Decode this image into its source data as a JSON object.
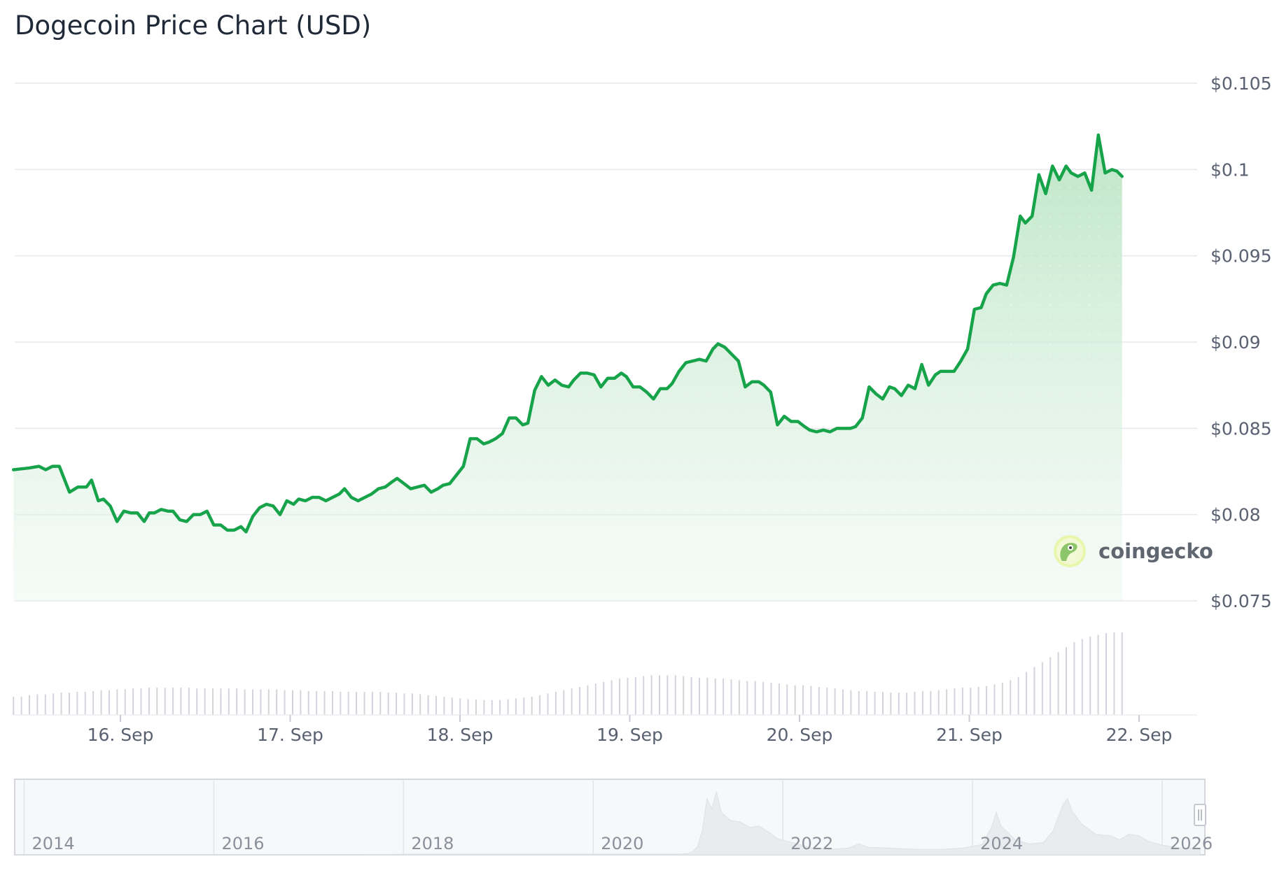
{
  "chart_data": {
    "type": "area",
    "title": "Dogecoin Price Chart (USD)",
    "xlabel": "",
    "ylabel": "",
    "currency": "USD",
    "x_range": [
      "15. Sep",
      "22. Sep"
    ],
    "ylim": [
      0.075,
      0.105
    ],
    "y_ticks": [
      {
        "value": 0.105,
        "label": "$0.105"
      },
      {
        "value": 0.1,
        "label": "$0.1"
      },
      {
        "value": 0.095,
        "label": "$0.095"
      },
      {
        "value": 0.09,
        "label": "$0.09"
      },
      {
        "value": 0.085,
        "label": "$0.085"
      },
      {
        "value": 0.08,
        "label": "$0.08"
      },
      {
        "value": 0.075,
        "label": "$0.075"
      }
    ],
    "x_ticks": [
      {
        "day": 1,
        "label": "16. Sep"
      },
      {
        "day": 2,
        "label": "17. Sep"
      },
      {
        "day": 3,
        "label": "18. Sep"
      },
      {
        "day": 4,
        "label": "19. Sep"
      },
      {
        "day": 5,
        "label": "20. Sep"
      },
      {
        "day": 6,
        "label": "21. Sep"
      },
      {
        "day": 7,
        "label": "22. Sep"
      }
    ],
    "grid": true,
    "legend": "none",
    "series": [
      {
        "values": [
          [
            0.37,
            0.0826
          ],
          [
            0.46,
            0.0827
          ],
          [
            0.52,
            0.0828
          ],
          [
            0.56,
            0.0826
          ],
          [
            0.6,
            0.0828
          ],
          [
            0.64,
            0.0828
          ],
          [
            0.7,
            0.0813
          ],
          [
            0.75,
            0.0816
          ],
          [
            0.8,
            0.0816
          ],
          [
            0.83,
            0.082
          ],
          [
            0.87,
            0.0808
          ],
          [
            0.9,
            0.0809
          ],
          [
            0.94,
            0.0805
          ],
          [
            0.98,
            0.0796
          ],
          [
            1.02,
            0.0802
          ],
          [
            1.06,
            0.0801
          ],
          [
            1.1,
            0.0801
          ],
          [
            1.14,
            0.0796
          ],
          [
            1.17,
            0.0801
          ],
          [
            1.2,
            0.0801
          ],
          [
            1.24,
            0.0803
          ],
          [
            1.28,
            0.0802
          ],
          [
            1.31,
            0.0802
          ],
          [
            1.35,
            0.0797
          ],
          [
            1.39,
            0.0796
          ],
          [
            1.43,
            0.08
          ],
          [
            1.47,
            0.08
          ],
          [
            1.51,
            0.0802
          ],
          [
            1.55,
            0.0794
          ],
          [
            1.59,
            0.0794
          ],
          [
            1.63,
            0.0791
          ],
          [
            1.67,
            0.0791
          ],
          [
            1.71,
            0.0793
          ],
          [
            1.74,
            0.079
          ],
          [
            1.78,
            0.0799
          ],
          [
            1.82,
            0.0804
          ],
          [
            1.86,
            0.0806
          ],
          [
            1.9,
            0.0805
          ],
          [
            1.94,
            0.08
          ],
          [
            1.98,
            0.0808
          ],
          [
            2.02,
            0.0806
          ],
          [
            2.05,
            0.0809
          ],
          [
            2.09,
            0.0808
          ],
          [
            2.13,
            0.081
          ],
          [
            2.17,
            0.081
          ],
          [
            2.21,
            0.0808
          ],
          [
            2.25,
            0.081
          ],
          [
            2.29,
            0.0812
          ],
          [
            2.32,
            0.0815
          ],
          [
            2.36,
            0.081
          ],
          [
            2.4,
            0.0808
          ],
          [
            2.44,
            0.081
          ],
          [
            2.48,
            0.0812
          ],
          [
            2.52,
            0.0815
          ],
          [
            2.56,
            0.0816
          ],
          [
            2.6,
            0.0819
          ],
          [
            2.63,
            0.0821
          ],
          [
            2.67,
            0.0818
          ],
          [
            2.71,
            0.0815
          ],
          [
            2.75,
            0.0816
          ],
          [
            2.79,
            0.0817
          ],
          [
            2.83,
            0.0813
          ],
          [
            2.87,
            0.0815
          ],
          [
            2.9,
            0.0817
          ],
          [
            2.94,
            0.0818
          ],
          [
            2.98,
            0.0823
          ],
          [
            3.02,
            0.0828
          ],
          [
            3.06,
            0.0844
          ],
          [
            3.1,
            0.0844
          ],
          [
            3.14,
            0.0841
          ],
          [
            3.17,
            0.0842
          ],
          [
            3.21,
            0.0844
          ],
          [
            3.25,
            0.0847
          ],
          [
            3.29,
            0.0856
          ],
          [
            3.33,
            0.0856
          ],
          [
            3.37,
            0.0852
          ],
          [
            3.4,
            0.0853
          ],
          [
            3.44,
            0.0872
          ],
          [
            3.48,
            0.088
          ],
          [
            3.52,
            0.0875
          ],
          [
            3.56,
            0.0878
          ],
          [
            3.6,
            0.0875
          ],
          [
            3.64,
            0.0874
          ],
          [
            3.67,
            0.0878
          ],
          [
            3.71,
            0.0882
          ],
          [
            3.75,
            0.0882
          ],
          [
            3.79,
            0.0881
          ],
          [
            3.83,
            0.0874
          ],
          [
            3.87,
            0.0879
          ],
          [
            3.91,
            0.0879
          ],
          [
            3.95,
            0.0882
          ],
          [
            3.98,
            0.088
          ],
          [
            4.02,
            0.0874
          ],
          [
            4.06,
            0.0874
          ],
          [
            4.1,
            0.0871
          ],
          [
            4.14,
            0.0867
          ],
          [
            4.18,
            0.0873
          ],
          [
            4.22,
            0.0873
          ],
          [
            4.25,
            0.0876
          ],
          [
            4.29,
            0.0883
          ],
          [
            4.33,
            0.0888
          ],
          [
            4.37,
            0.0889
          ],
          [
            4.41,
            0.089
          ],
          [
            4.45,
            0.0889
          ],
          [
            4.49,
            0.0896
          ],
          [
            4.52,
            0.0899
          ],
          [
            4.56,
            0.0897
          ],
          [
            4.6,
            0.0893
          ],
          [
            4.64,
            0.0889
          ],
          [
            4.68,
            0.0874
          ],
          [
            4.72,
            0.0877
          ],
          [
            4.76,
            0.0877
          ],
          [
            4.79,
            0.0875
          ],
          [
            4.83,
            0.0871
          ],
          [
            4.87,
            0.0852
          ],
          [
            4.91,
            0.0857
          ],
          [
            4.95,
            0.0854
          ],
          [
            4.99,
            0.0854
          ],
          [
            5.03,
            0.0851
          ],
          [
            5.06,
            0.0849
          ],
          [
            5.1,
            0.0848
          ],
          [
            5.14,
            0.0849
          ],
          [
            5.18,
            0.0848
          ],
          [
            5.22,
            0.085
          ],
          [
            5.26,
            0.085
          ],
          [
            5.3,
            0.085
          ],
          [
            5.33,
            0.0851
          ],
          [
            5.37,
            0.0856
          ],
          [
            5.41,
            0.0874
          ],
          [
            5.45,
            0.087
          ],
          [
            5.49,
            0.0867
          ],
          [
            5.53,
            0.0874
          ],
          [
            5.56,
            0.0873
          ],
          [
            5.6,
            0.0869
          ],
          [
            5.64,
            0.0875
          ],
          [
            5.68,
            0.0873
          ],
          [
            5.72,
            0.0887
          ],
          [
            5.76,
            0.0875
          ],
          [
            5.8,
            0.0881
          ],
          [
            5.83,
            0.0883
          ],
          [
            5.87,
            0.0883
          ],
          [
            5.91,
            0.0883
          ],
          [
            5.95,
            0.0889
          ],
          [
            5.99,
            0.0896
          ],
          [
            6.03,
            0.0919
          ],
          [
            6.07,
            0.092
          ],
          [
            6.1,
            0.0928
          ],
          [
            6.14,
            0.0933
          ],
          [
            6.18,
            0.0934
          ],
          [
            6.22,
            0.0933
          ],
          [
            6.26,
            0.0949
          ],
          [
            6.3,
            0.0973
          ],
          [
            6.33,
            0.0969
          ],
          [
            6.37,
            0.0973
          ],
          [
            6.41,
            0.0997
          ],
          [
            6.45,
            0.0986
          ],
          [
            6.49,
            0.1002
          ],
          [
            6.53,
            0.0994
          ],
          [
            6.57,
            0.1002
          ],
          [
            6.6,
            0.0998
          ],
          [
            6.64,
            0.0996
          ],
          [
            6.68,
            0.0998
          ],
          [
            6.72,
            0.0988
          ],
          [
            6.76,
            0.102
          ],
          [
            6.8,
            0.0998
          ],
          [
            6.84,
            0.1
          ],
          [
            6.87,
            0.0999
          ],
          [
            6.9,
            0.0996
          ]
        ]
      }
    ],
    "volume_series": {
      "x_range": [
        0.37,
        6.9
      ],
      "values": [
        0.22,
        0.22,
        0.24,
        0.25,
        0.25,
        0.26,
        0.27,
        0.27,
        0.28,
        0.28,
        0.29,
        0.3,
        0.3,
        0.31,
        0.31,
        0.32,
        0.32,
        0.33,
        0.33,
        0.33,
        0.33,
        0.33,
        0.33,
        0.32,
        0.32,
        0.32,
        0.32,
        0.32,
        0.32,
        0.31,
        0.31,
        0.31,
        0.31,
        0.31,
        0.3,
        0.3,
        0.3,
        0.29,
        0.29,
        0.29,
        0.29,
        0.28,
        0.28,
        0.28,
        0.28,
        0.28,
        0.28,
        0.27,
        0.27,
        0.26,
        0.26,
        0.25,
        0.24,
        0.23,
        0.22,
        0.21,
        0.2,
        0.19,
        0.19,
        0.18,
        0.18,
        0.18,
        0.19,
        0.2,
        0.21,
        0.22,
        0.24,
        0.26,
        0.28,
        0.3,
        0.32,
        0.34,
        0.36,
        0.38,
        0.4,
        0.42,
        0.44,
        0.45,
        0.46,
        0.47,
        0.48,
        0.48,
        0.48,
        0.48,
        0.47,
        0.46,
        0.45,
        0.45,
        0.44,
        0.44,
        0.43,
        0.42,
        0.41,
        0.41,
        0.4,
        0.39,
        0.38,
        0.37,
        0.36,
        0.36,
        0.35,
        0.34,
        0.33,
        0.32,
        0.31,
        0.3,
        0.29,
        0.29,
        0.28,
        0.28,
        0.27,
        0.27,
        0.27,
        0.28,
        0.29,
        0.29,
        0.3,
        0.31,
        0.32,
        0.33,
        0.33,
        0.34,
        0.35,
        0.37,
        0.39,
        0.42,
        0.46,
        0.52,
        0.58,
        0.64,
        0.7,
        0.76,
        0.82,
        0.88,
        0.92,
        0.95,
        0.97,
        0.99,
        1.0,
        1.0
      ]
    },
    "navigator": {
      "year_labels": [
        "2014",
        "2016",
        "2018",
        "2020",
        "2022",
        "2024",
        "2026"
      ],
      "history": [
        [
          2013.9,
          0.0
        ],
        [
          2014.5,
          0.0
        ],
        [
          2015.5,
          0.0
        ],
        [
          2016.5,
          0.0
        ],
        [
          2017.5,
          0.0
        ],
        [
          2018.0,
          0.01
        ],
        [
          2019.0,
          0.01
        ],
        [
          2020.0,
          0.01
        ],
        [
          2020.9,
          0.01
        ],
        [
          2021.0,
          0.02
        ],
        [
          2021.05,
          0.05
        ],
        [
          2021.1,
          0.12
        ],
        [
          2021.15,
          0.35
        ],
        [
          2021.2,
          0.82
        ],
        [
          2021.25,
          0.67
        ],
        [
          2021.3,
          0.92
        ],
        [
          2021.35,
          0.62
        ],
        [
          2021.45,
          0.5
        ],
        [
          2021.55,
          0.48
        ],
        [
          2021.65,
          0.4
        ],
        [
          2021.75,
          0.42
        ],
        [
          2021.85,
          0.33
        ],
        [
          2021.95,
          0.23
        ],
        [
          2022.1,
          0.18
        ],
        [
          2022.3,
          0.1
        ],
        [
          2022.5,
          0.08
        ],
        [
          2022.7,
          0.1
        ],
        [
          2022.8,
          0.16
        ],
        [
          2022.9,
          0.11
        ],
        [
          2023.1,
          0.1
        ],
        [
          2023.4,
          0.08
        ],
        [
          2023.7,
          0.08
        ],
        [
          2023.9,
          0.1
        ],
        [
          2024.1,
          0.15
        ],
        [
          2024.2,
          0.4
        ],
        [
          2024.25,
          0.62
        ],
        [
          2024.3,
          0.42
        ],
        [
          2024.45,
          0.22
        ],
        [
          2024.6,
          0.16
        ],
        [
          2024.75,
          0.18
        ],
        [
          2024.85,
          0.35
        ],
        [
          2024.95,
          0.72
        ],
        [
          2025.0,
          0.82
        ],
        [
          2025.05,
          0.64
        ],
        [
          2025.15,
          0.45
        ],
        [
          2025.3,
          0.3
        ],
        [
          2025.45,
          0.28
        ],
        [
          2025.55,
          0.22
        ],
        [
          2025.65,
          0.3
        ],
        [
          2025.75,
          0.28
        ],
        [
          2025.85,
          0.2
        ],
        [
          2026.0,
          0.14
        ],
        [
          2026.2,
          0.1
        ],
        [
          2026.4,
          0.1
        ]
      ]
    },
    "colors": {
      "line": "#17a34a",
      "fill_top": "#b8e4c2",
      "fill_bottom": "#eaf6ee",
      "grid": "#e6e8eb",
      "volume": "#d1d5db",
      "nav_bg": "#f7f8fa",
      "nav_border": "#d3d6da",
      "nav_area": "#e9ecef",
      "text": "#1f2937",
      "tick_text": "#596171"
    },
    "watermark": {
      "text": "coingecko",
      "icon": "gecko-icon"
    }
  }
}
